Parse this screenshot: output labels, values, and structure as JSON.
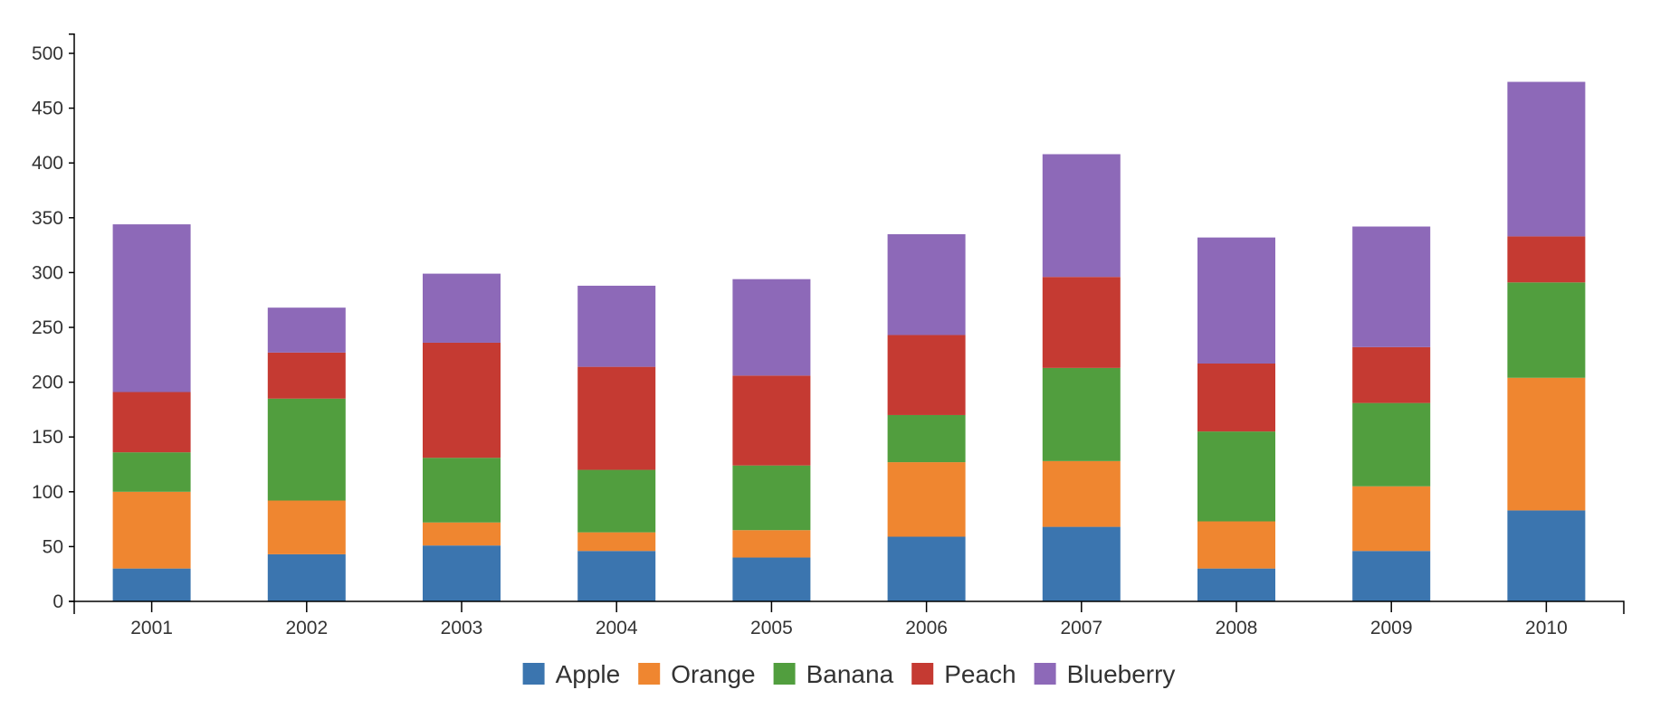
{
  "chart_data": {
    "type": "bar",
    "stacked": true,
    "title": "",
    "xlabel": "",
    "ylabel": "",
    "categories": [
      "2001",
      "2002",
      "2003",
      "2004",
      "2005",
      "2006",
      "2007",
      "2008",
      "2009",
      "2010"
    ],
    "ylim": [
      0,
      520
    ],
    "yticks": [
      0,
      50,
      100,
      150,
      200,
      250,
      300,
      350,
      400,
      450,
      500
    ],
    "grid": false,
    "legend_position": "bottom-center",
    "series": [
      {
        "name": "Apple",
        "color": "#3b75af",
        "values": [
          30,
          43,
          51,
          46,
          40,
          59,
          68,
          30,
          46,
          83
        ]
      },
      {
        "name": "Orange",
        "color": "#ef8630",
        "values": [
          70,
          49,
          21,
          17,
          25,
          68,
          60,
          43,
          59,
          121
        ]
      },
      {
        "name": "Banana",
        "color": "#519e3e",
        "values": [
          36,
          93,
          59,
          57,
          59,
          43,
          85,
          82,
          76,
          87
        ]
      },
      {
        "name": "Peach",
        "color": "#c53a32",
        "values": [
          55,
          42,
          105,
          94,
          82,
          73,
          83,
          62,
          51,
          42
        ]
      },
      {
        "name": "Blueberry",
        "color": "#8d69b8",
        "values": [
          153,
          41,
          63,
          74,
          88,
          92,
          112,
          115,
          110,
          141
        ]
      }
    ]
  }
}
